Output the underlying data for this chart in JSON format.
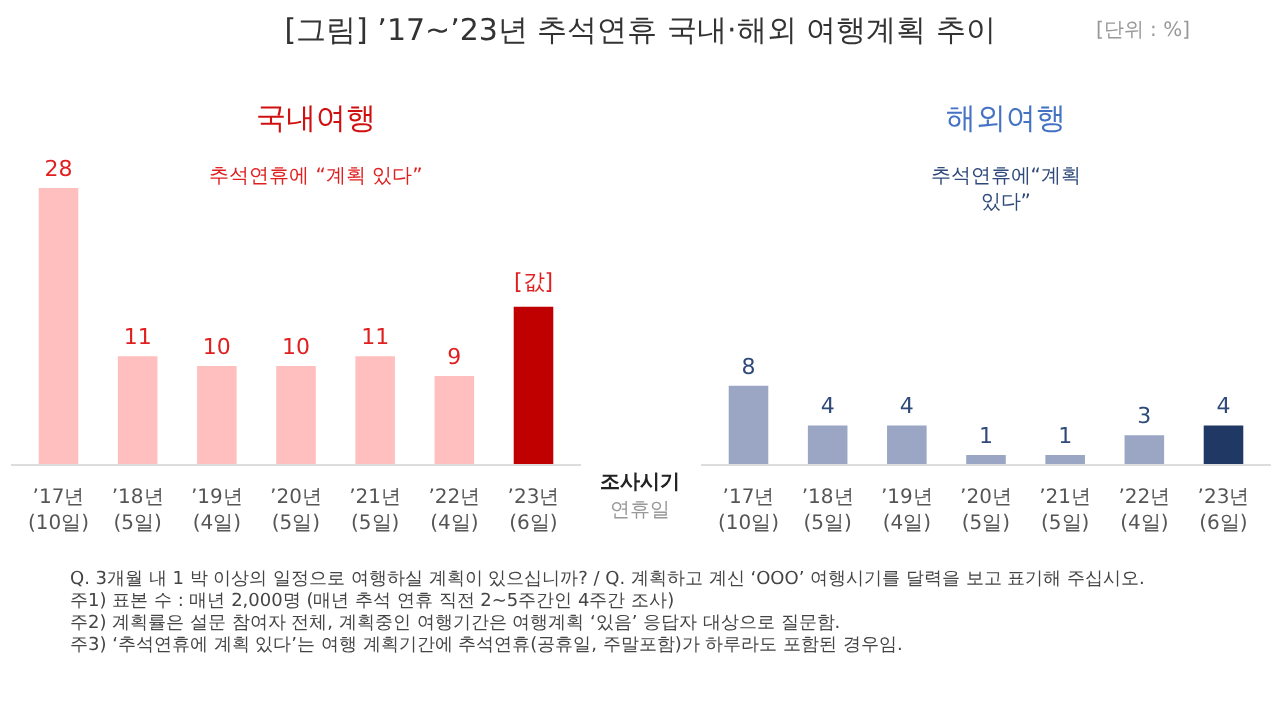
{
  "chart_data": [
    {
      "type": "bar",
      "title": "[그림] ’17~’23년 추석연휴 국내·해외 여행계획 추이",
      "subtitle": "국내여행",
      "categories": [
        "’17년\n(10일)",
        "’18년\n(5일)",
        "’19년\n(4일)",
        "’20년\n(5일)",
        "’21년\n(5일)",
        "’22년\n(4일)",
        "’23년\n(6일)"
      ],
      "values": [
        28,
        11,
        10,
        10,
        11,
        9,
        16
      ],
      "value_labels": [
        "28",
        "11",
        "10",
        "10",
        "11",
        "9",
        "[값]"
      ],
      "colors": [
        "#ffbfbf",
        "#ffbfbf",
        "#ffbfbf",
        "#ffbfbf",
        "#ffbfbf",
        "#ffbfbf",
        "#c00000"
      ],
      "annotations": [
        "추석연휴에 “계획 있다”",
        "[단위 : %]",
        "조사시기",
        "연휴일",
        "Q. 3개월 내 1 박 이상의 일정으로 여행하실 계획이 있으십니까? / Q. 계획하고 계신 ‘OOO’ 여행시기를 달력을 보고 표기해 주십시오.",
        "주1) 표본 수 : 매년 2,000명 (매년 추석 연휴 직전 2~5주간인 4주간 조사)",
        "주2) 계획률은 설문 참여자 전체, 계획중인 여행기간은 여행계획 ‘있음’ 응답자 대상으로 질문함.",
        "주3) ‘추석연휴에 계획 있다’는 여행 계획기간에 추석연휴(공휴일, 주말포함)가 하루라도 포함된 경우임."
      ]
    },
    {
      "type": "bar",
      "subtitle": "해외여행",
      "categories": [
        "’17년\n(10일)",
        "’18년\n(5일)",
        "’19년\n(4일)",
        "’20년\n(5일)",
        "’21년\n(5일)",
        "’22년\n(4일)",
        "’23년\n(6일)"
      ],
      "values": [
        8,
        4,
        4,
        1,
        1,
        3,
        4
      ],
      "data_labels": true,
      "colors": [
        "#9aa6c4",
        "#9aa6c4",
        "#9aa6c4",
        "#9aa6c4",
        "#9aa6c4",
        "#9aa6c4",
        "#1f3864"
      ],
      "annotations": [
        "추석연휴에“계획\n있다”"
      ]
    }
  ]
}
